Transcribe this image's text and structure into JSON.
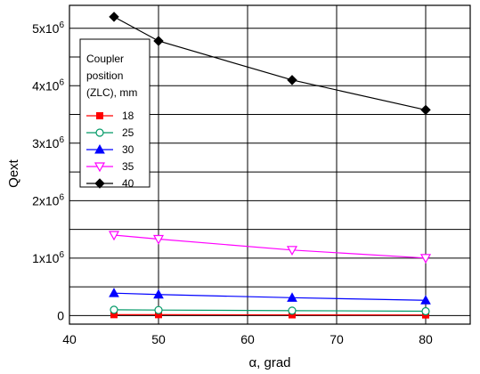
{
  "chart_data": {
    "type": "line",
    "xlabel": "α, grad",
    "ylabel": "Qext",
    "xlim": [
      40,
      85
    ],
    "ylim": [
      -150000,
      5400000
    ],
    "grid": true,
    "x_ticks": [
      {
        "value": 40,
        "label": "40"
      },
      {
        "value": 50,
        "label": "50"
      },
      {
        "value": 60,
        "label": "60"
      },
      {
        "value": 70,
        "label": "70"
      },
      {
        "value": 80,
        "label": "80"
      }
    ],
    "y_ticks": [
      {
        "value": 0,
        "base": "0",
        "exp": ""
      },
      {
        "value": 1000000,
        "base": "1x10",
        "exp": "6"
      },
      {
        "value": 2000000,
        "base": "2x10",
        "exp": "6"
      },
      {
        "value": 3000000,
        "base": "3x10",
        "exp": "6"
      },
      {
        "value": 4000000,
        "base": "4x10",
        "exp": "6"
      },
      {
        "value": 5000000,
        "base": "5x10",
        "exp": "6"
      }
    ],
    "legend": {
      "title": [
        "Coupler",
        "position",
        "(ZLC), mm"
      ],
      "placement": "top-left"
    },
    "x": [
      45,
      50,
      65,
      80
    ],
    "series": [
      {
        "name": "18",
        "color": "#ff0000",
        "marker": "square-filled",
        "values": [
          15000,
          15000,
          12000,
          10000
        ]
      },
      {
        "name": "25",
        "color": "#009966",
        "marker": "circle-open",
        "values": [
          100000,
          95000,
          85000,
          75000
        ]
      },
      {
        "name": "30",
        "color": "#0000ff",
        "marker": "triangle-up-filled",
        "values": [
          390000,
          365000,
          310000,
          265000
        ]
      },
      {
        "name": "35",
        "color": "#ff00ff",
        "marker": "triangle-down-open",
        "values": [
          1400000,
          1330000,
          1140000,
          1000000
        ]
      },
      {
        "name": "40",
        "color": "#000000",
        "marker": "diamond-filled",
        "values": [
          5200000,
          4780000,
          4100000,
          3580000
        ]
      }
    ]
  }
}
